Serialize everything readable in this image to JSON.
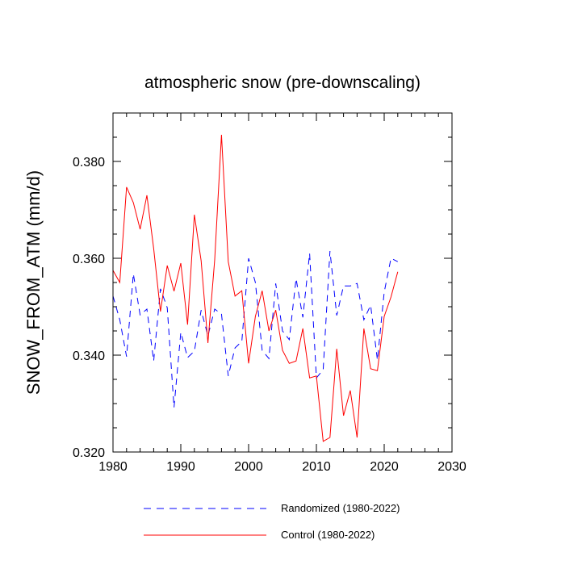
{
  "chart_data": {
    "type": "line",
    "title": "atmospheric snow (pre-downscaling)",
    "xlabel": "",
    "ylabel": "SNOW_FROM_ATM  (mm/d)",
    "xlim": [
      1980,
      2030
    ],
    "ylim": [
      0.32,
      0.39
    ],
    "x_ticks": [
      1980,
      1990,
      2000,
      2010,
      2020,
      2030
    ],
    "x_tick_labels": [
      "1980",
      "1990",
      "2000",
      "2010",
      "2020",
      "2030"
    ],
    "y_ticks": [
      0.32,
      0.34,
      0.36,
      0.38
    ],
    "y_tick_labels": [
      "0.320",
      "0.340",
      "0.360",
      "0.380"
    ],
    "x_minor_step": 2,
    "y_minor_step": 0.005,
    "grid": false,
    "legend_position": "bottom",
    "x": [
      1980,
      1981,
      1982,
      1983,
      1984,
      1985,
      1986,
      1987,
      1988,
      1989,
      1990,
      1991,
      1992,
      1993,
      1994,
      1995,
      1996,
      1997,
      1998,
      1999,
      2000,
      2001,
      2002,
      2003,
      2004,
      2005,
      2006,
      2007,
      2008,
      2009,
      2010,
      2011,
      2012,
      2013,
      2014,
      2015,
      2016,
      2017,
      2018,
      2019,
      2020,
      2021,
      2022
    ],
    "series": [
      {
        "name": "Randomized (1980-2022)",
        "color": "#0000ff",
        "style": "dashed",
        "values": [
          0.3522,
          0.3473,
          0.3397,
          0.3568,
          0.3483,
          0.3495,
          0.3388,
          0.3537,
          0.3498,
          0.3292,
          0.3447,
          0.3395,
          0.3408,
          0.3493,
          0.344,
          0.3495,
          0.3485,
          0.3357,
          0.3415,
          0.3428,
          0.36,
          0.355,
          0.341,
          0.3393,
          0.3548,
          0.345,
          0.3432,
          0.3558,
          0.3478,
          0.361,
          0.3353,
          0.337,
          0.3615,
          0.3482,
          0.3543,
          0.3543,
          0.3548,
          0.3473,
          0.3503,
          0.339,
          0.353,
          0.36,
          0.3593
        ]
      },
      {
        "name": "Control (1980-2022)",
        "color": "#ff0000",
        "style": "solid",
        "values": [
          0.3575,
          0.355,
          0.3747,
          0.3715,
          0.366,
          0.373,
          0.362,
          0.349,
          0.3585,
          0.3532,
          0.359,
          0.3463,
          0.369,
          0.3595,
          0.3425,
          0.3597,
          0.3855,
          0.3593,
          0.3522,
          0.3533,
          0.3383,
          0.348,
          0.3533,
          0.345,
          0.3493,
          0.341,
          0.3383,
          0.3388,
          0.3455,
          0.3353,
          0.3357,
          0.3222,
          0.323,
          0.3413,
          0.3275,
          0.3327,
          0.323,
          0.3455,
          0.3372,
          0.3368,
          0.348,
          0.352,
          0.3572
        ]
      }
    ]
  }
}
